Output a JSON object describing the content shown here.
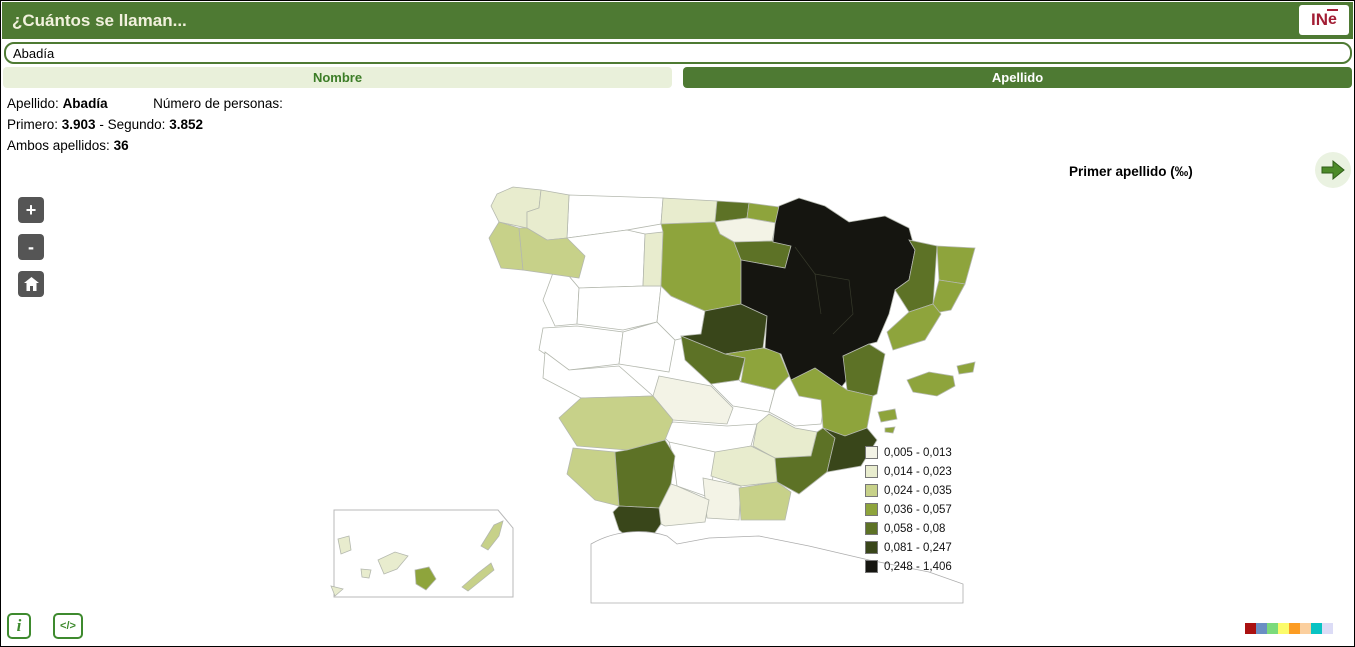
{
  "header": {
    "title": "¿Cuántos se llaman...",
    "logo_prefix": "IN",
    "logo_e": "e"
  },
  "search": {
    "value": "Abadía"
  },
  "tabs": [
    {
      "label": "Nombre",
      "active": false
    },
    {
      "label": "Apellido",
      "active": true
    }
  ],
  "info": {
    "surname_label": "Apellido:",
    "surname": "Abadía",
    "persons_label": "Número de personas:",
    "first_label": "Primero:",
    "first_value": "3.903",
    "separator": "-",
    "second_label": "Segundo:",
    "second_value": "3.852",
    "both_label": "Ambos apellidos:",
    "both_value": "36"
  },
  "map": {
    "zoom_in_label": "+",
    "zoom_out_label": "-",
    "metric_label": "Primer apellido (‰)",
    "nodata_color": "#ffffff",
    "legend": [
      {
        "range": "0,005 - 0,013",
        "color": "#f3f3e6"
      },
      {
        "range": "0,014 - 0,023",
        "color": "#e8ecce"
      },
      {
        "range": "0,024 - 0,035",
        "color": "#c7d189"
      },
      {
        "range": "0,036 - 0,057",
        "color": "#8ea43c"
      },
      {
        "range": "0,058 - 0,08",
        "color": "#5d7226"
      },
      {
        "range": "0,081 - 0,247",
        "color": "#39461a"
      },
      {
        "range": "0,248 - 1,406",
        "color": "#151510"
      }
    ],
    "regions": {
      "acoruna": 1,
      "lugo": 1,
      "pontevedra": 2,
      "ourense": 2,
      "asturias": null,
      "cantabria": 1,
      "vizcaya": 4,
      "gipuzkoa": 3,
      "alava": 0,
      "leon": null,
      "palencia": 1,
      "burgos": 3,
      "larioja": 4,
      "zamora": null,
      "valladolid": null,
      "salamanca": null,
      "avila": null,
      "segovia": null,
      "soria": 5,
      "guadalajara-w": 4,
      "guadalajara-e": 3,
      "madrid": null,
      "toledo": 0,
      "caceres": null,
      "badajoz": 2,
      "ciudadreal": null,
      "cuenca": null,
      "albacete": 1,
      "huelva": 2,
      "sevilla": 4,
      "cordoba": null,
      "jaen": 1,
      "granada": 0,
      "almeria": 2,
      "malaga": 0,
      "cadiz": 5,
      "murcia": 4,
      "alicante": 5,
      "valencia": 3,
      "castellon": 4,
      "navarra-aragon": 6,
      "lleida": 4,
      "girona": 3,
      "barcelona": 3,
      "tarragona": 3,
      "mallorca": 3,
      "menorca": 3,
      "ibiza": 3,
      "formentera": 3,
      "lapalma": 1,
      "gomera": 1,
      "hierro": 1,
      "tenerife": 1,
      "grancanaria": 3,
      "fuerteventura": 2,
      "lanzarote": 2
    }
  },
  "footer": {
    "info_icon": "i",
    "embed_icon": "</>",
    "palette": [
      "#aa1111",
      "#6a8fc3",
      "#7bda7b",
      "#fbfb6a",
      "#fc9c23",
      "#fbcf9e",
      "#09c3c3",
      "#dcdcf6"
    ]
  },
  "theme": {
    "header_bg": "#4e7a33",
    "header_text": "#f1f1dd",
    "tab_inactive_bg": "#e9f0da",
    "tab_inactive_text": "#3c7d27",
    "tab_active_bg": "#4e7a33",
    "ine_red": "#a21d34",
    "control_bg": "#555555",
    "icon_green": "#3e8a2e",
    "arrow_green": "#4c8a28",
    "map_stroke": "#b4b8ae"
  }
}
